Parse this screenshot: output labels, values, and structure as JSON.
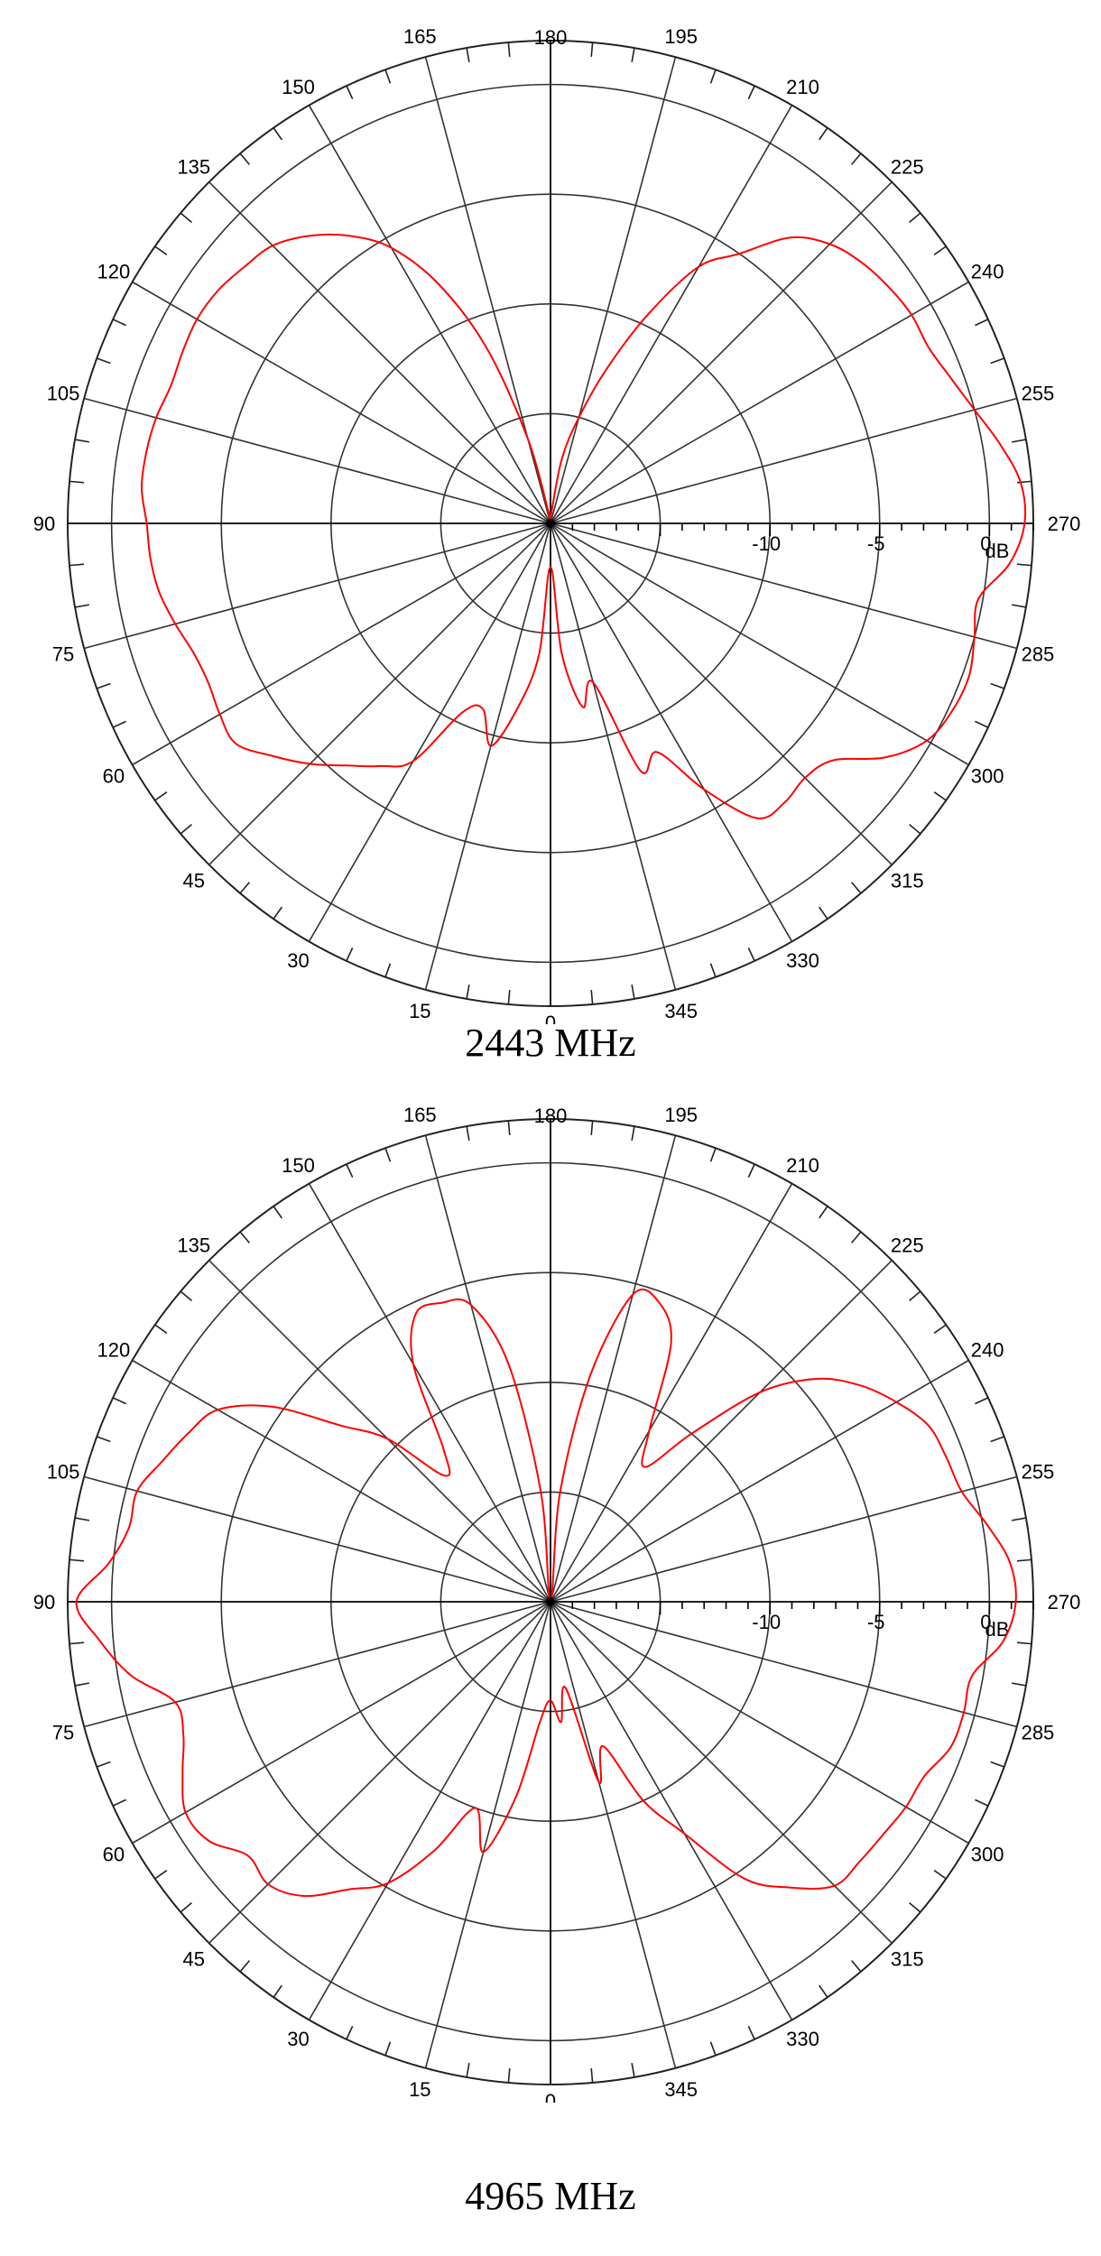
{
  "chart_data": [
    {
      "type": "polar-line",
      "title": "2443 MHz",
      "units": "dB",
      "radial_ticks": [
        "-10",
        "-5",
        "0"
      ],
      "radial_tick_values": [
        -10,
        -5,
        0
      ],
      "radial_range_db": [
        -20,
        2
      ],
      "angle_labels": [
        "0",
        "15",
        "30",
        "45",
        "60",
        "75",
        "90",
        "105",
        "120",
        "135",
        "150",
        "165",
        "180",
        "195",
        "210",
        "225",
        "240",
        "255",
        "270",
        "285",
        "300",
        "315",
        "330",
        "345"
      ],
      "angle_values_deg": [
        0,
        15,
        30,
        45,
        60,
        75,
        90,
        105,
        120,
        135,
        150,
        165,
        180,
        195,
        210,
        225,
        240,
        255,
        270,
        285,
        300,
        315,
        330,
        345
      ],
      "grid": true,
      "line_color": "#ff0000",
      "series": [
        {
          "angle_deg": [
            0,
            5,
            10,
            15,
            20,
            25,
            30,
            35,
            40,
            45,
            50,
            55,
            60,
            65,
            70,
            75,
            80,
            85,
            90,
            95,
            100,
            105,
            110,
            115,
            120,
            125,
            130,
            135,
            140,
            145,
            150,
            155,
            160,
            165,
            170,
            175,
            180,
            185,
            190,
            195,
            200,
            205,
            210,
            215,
            220,
            225,
            230,
            235,
            240,
            245,
            250,
            255,
            260,
            265,
            270,
            275,
            280,
            285,
            290,
            295,
            300,
            305,
            310,
            315,
            320,
            325,
            330,
            335,
            340,
            345,
            350,
            355,
            360
          ],
          "gain_db": [
            -18,
            -14,
            -11.5,
            -9.5,
            -11,
            -10.5,
            -7.5,
            -6.5,
            -5.6,
            -4.5,
            -3.5,
            -2.5,
            -2.6,
            -2.8,
            -2.7,
            -2.3,
            -1.9,
            -1.7,
            -1.6,
            -1.3,
            -1.3,
            -1.4,
            -1.6,
            -1.5,
            -1.4,
            -1.5,
            -1.8,
            -2.1,
            -2.9,
            -4.0,
            -5.5,
            -8.0,
            -11.5,
            -16.0,
            -19.5,
            -19.8,
            -20,
            -19.5,
            -17,
            -15,
            -12.5,
            -9.5,
            -6.5,
            -5.0,
            -3.0,
            -2.0,
            -1.5,
            -1.2,
            -1.0,
            -1.0,
            -0.6,
            0.0,
            0.8,
            1.5,
            1.6,
            1.0,
            -0.2,
            0.0,
            0.3,
            0.2,
            -0.2,
            -1.4,
            -3.2,
            -3.6,
            -3.4,
            -3.6,
            -6.0,
            -8.5,
            -8.0,
            -12.5,
            -11.5,
            -14.0,
            -18
          ]
        }
      ]
    },
    {
      "type": "polar-line",
      "title": "4965 MHz",
      "units": "dB",
      "radial_ticks": [
        "-10",
        "-5",
        "0"
      ],
      "radial_tick_values": [
        -10,
        -5,
        0
      ],
      "radial_range_db": [
        -20,
        2
      ],
      "angle_labels": [
        "0",
        "15",
        "30",
        "45",
        "60",
        "75",
        "90",
        "105",
        "120",
        "135",
        "150",
        "165",
        "180",
        "195",
        "210",
        "225",
        "240",
        "255",
        "270",
        "285",
        "300",
        "315",
        "330",
        "345"
      ],
      "angle_values_deg": [
        0,
        15,
        30,
        45,
        60,
        75,
        90,
        105,
        120,
        135,
        150,
        165,
        180,
        195,
        210,
        225,
        240,
        255,
        270,
        285,
        300,
        315,
        330,
        345
      ],
      "grid": true,
      "line_color": "#ff0000",
      "series": [
        {
          "angle_deg": [
            0,
            5,
            10,
            15,
            20,
            25,
            30,
            35,
            40,
            45,
            50,
            55,
            60,
            65,
            70,
            75,
            80,
            85,
            90,
            95,
            100,
            105,
            110,
            115,
            120,
            125,
            130,
            135,
            140,
            145,
            150,
            155,
            160,
            165,
            170,
            175,
            180,
            185,
            190,
            195,
            200,
            205,
            210,
            215,
            220,
            225,
            230,
            235,
            240,
            245,
            250,
            255,
            260,
            265,
            270,
            275,
            280,
            285,
            290,
            295,
            300,
            305,
            310,
            315,
            320,
            325,
            330,
            335,
            340,
            345,
            350,
            355,
            360
          ],
          "gain_db": [
            -15.5,
            -14.5,
            -11.0,
            -8.2,
            -10.0,
            -7.5,
            -5.2,
            -4.0,
            -2.5,
            -1.8,
            -2.0,
            -1.0,
            -0.8,
            -1.5,
            -2.2,
            -2.3,
            -0.6,
            0.6,
            1.6,
            0.2,
            -0.5,
            -0.5,
            -1.2,
            -1.8,
            -2.5,
            -4.5,
            -7.5,
            -9.5,
            -12.5,
            -11.5,
            -7.5,
            -5.5,
            -5.5,
            -6.0,
            -9.0,
            -15.0,
            -20,
            -15.0,
            -9.5,
            -5.5,
            -5.5,
            -7.0,
            -11.0,
            -12.5,
            -10.0,
            -6.5,
            -4.2,
            -2.8,
            -1.8,
            -1.0,
            -0.8,
            -0.6,
            0.2,
            1.0,
            1.2,
            0.7,
            -0.5,
            -0.5,
            -0.6,
            -1.2,
            -1.3,
            -1.5,
            -1.6,
            -1.7,
            -3.0,
            -4.6,
            -7.8,
            -10.0,
            -13.0,
            -11.5,
            -16.0,
            -14.5,
            -15.5
          ]
        }
      ]
    }
  ],
  "labels": {
    "db_unit": "dB",
    "caption_1": "2443 MHz",
    "caption_2": "4965 MHz"
  }
}
